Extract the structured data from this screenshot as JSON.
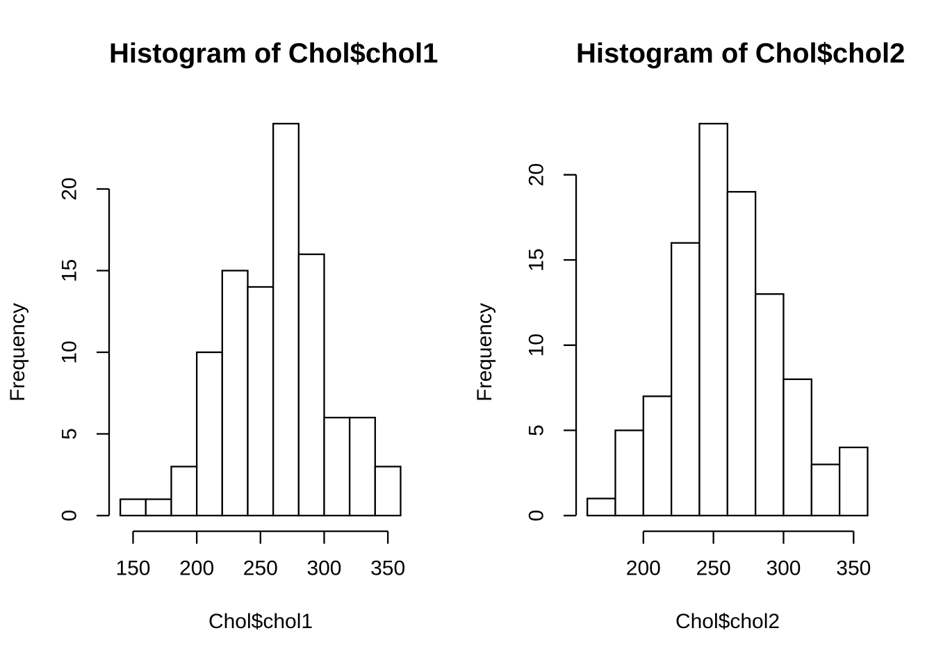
{
  "figure": {
    "background": "#ffffff",
    "foreground": "#000000",
    "layout": "two histograms side by side"
  },
  "chart_data": [
    {
      "type": "bar",
      "subtype": "histogram",
      "title": "Histogram of Chol$chol1",
      "xlabel": "Chol$chol1",
      "ylabel": "Frequency",
      "bin_edges": [
        140,
        160,
        180,
        200,
        220,
        240,
        260,
        280,
        300,
        320,
        340,
        360
      ],
      "counts": [
        1,
        1,
        3,
        10,
        15,
        14,
        24,
        16,
        6,
        6,
        3
      ],
      "x_ticks": [
        150,
        200,
        250,
        300,
        350
      ],
      "y_ticks": [
        0,
        5,
        10,
        15,
        20
      ],
      "xlim": [
        140,
        360
      ],
      "ylim": [
        0,
        24
      ],
      "bar_fill": "#ffffff",
      "bar_stroke": "#000000",
      "axis_color": "#000000",
      "grid": false,
      "legend": "none",
      "y_tick_label_rotation_deg": 90
    },
    {
      "type": "bar",
      "subtype": "histogram",
      "title": "Histogram of Chol$chol2",
      "xlabel": "Chol$chol2",
      "ylabel": "Frequency",
      "bin_edges": [
        160,
        180,
        200,
        220,
        240,
        260,
        280,
        300,
        320,
        340,
        360
      ],
      "counts": [
        1,
        5,
        7,
        16,
        23,
        19,
        13,
        8,
        3,
        4
      ],
      "x_ticks": [
        200,
        250,
        300,
        350
      ],
      "y_ticks": [
        0,
        5,
        10,
        15,
        20
      ],
      "xlim": [
        160,
        360
      ],
      "ylim": [
        0,
        23
      ],
      "bar_fill": "#ffffff",
      "bar_stroke": "#000000",
      "axis_color": "#000000",
      "grid": false,
      "legend": "none",
      "y_tick_label_rotation_deg": 90
    }
  ]
}
